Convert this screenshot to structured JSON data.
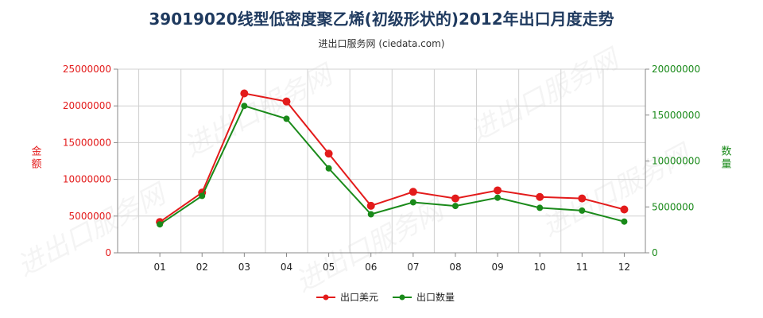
{
  "title": "39019020线型低密度聚乙烯(初级形状的)2012年出口月度走势",
  "subtitle": "进出口服务网 (ciedata.com)",
  "watermark": "进出口服务网",
  "colors": {
    "usd": "#e31b1b",
    "qty": "#1a8a1a",
    "grid": "#d0d0d0",
    "axis": "#888888"
  },
  "chart_data": {
    "type": "line",
    "title": "39019020线型低密度聚乙烯(初级形状的)2012年出口月度走势",
    "categories": [
      "01",
      "02",
      "03",
      "04",
      "05",
      "06",
      "07",
      "08",
      "09",
      "10",
      "11",
      "12"
    ],
    "y_left": {
      "label": "金额",
      "lim": [
        0,
        25000000
      ],
      "ticks": [
        "0",
        "5000000",
        "10000000",
        "15000000",
        "20000000",
        "25000000"
      ],
      "tick_values": [
        0,
        5000000,
        10000000,
        15000000,
        20000000,
        25000000
      ]
    },
    "y_right": {
      "label": "数量",
      "lim": [
        0,
        20000000
      ],
      "ticks": [
        "0",
        "5000000",
        "10000000",
        "15000000",
        "20000000"
      ],
      "tick_values": [
        0,
        5000000,
        10000000,
        15000000,
        20000000
      ]
    },
    "grid": true,
    "legend_position": "bottom-center",
    "series": [
      {
        "name": "出口美元",
        "axis": "left",
        "color": "#e31b1b",
        "values": [
          4200000,
          8200000,
          21700000,
          20600000,
          13500000,
          6400000,
          8300000,
          7400000,
          8500000,
          7600000,
          7400000,
          5900000
        ]
      },
      {
        "name": "出口数量",
        "axis": "right",
        "color": "#1a8a1a",
        "values": [
          3100000,
          6200000,
          16000000,
          14600000,
          9200000,
          4200000,
          5500000,
          5100000,
          6000000,
          4900000,
          4600000,
          3400000
        ]
      }
    ]
  }
}
